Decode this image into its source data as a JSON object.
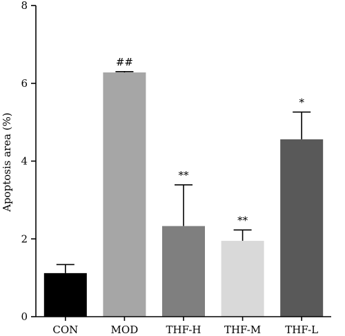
{
  "chart_data": {
    "type": "bar",
    "title": "",
    "xlabel": "",
    "ylabel": "Apoptosis area (%)",
    "ylim": [
      0,
      8
    ],
    "yticks": [
      0,
      2,
      4,
      6,
      8
    ],
    "grid": false,
    "categories": [
      "CON",
      "MOD",
      "THF-H",
      "THF-M",
      "THF-L"
    ],
    "values": [
      1.12,
      6.28,
      2.33,
      1.95,
      4.56
    ],
    "errors": [
      0.22,
      0.02,
      1.06,
      0.28,
      0.7
    ],
    "significance": [
      "",
      "##",
      "**",
      "**",
      "*"
    ],
    "colors": [
      "#000000",
      "#a6a6a6",
      "#7f7f7f",
      "#d9d9d9",
      "#595959"
    ]
  }
}
